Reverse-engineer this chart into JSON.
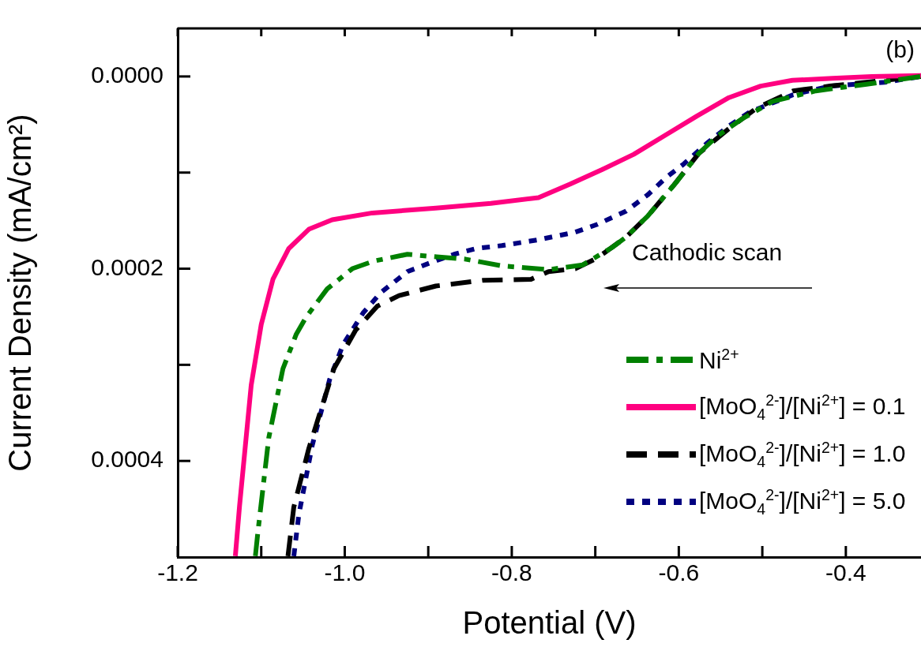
{
  "chart_data": {
    "type": "line",
    "xlabel": "Potential (V)",
    "ylabel": "Current Density (mA/cm²)",
    "xlim": [
      -1.2,
      -0.31
    ],
    "ylim": [
      0.0005,
      -5e-05
    ],
    "xticks": [
      {
        "value": -1.2,
        "label": "-1.2"
      },
      {
        "value": -1.1,
        "label": null
      },
      {
        "value": -1.0,
        "label": "-1.0"
      },
      {
        "value": -0.9,
        "label": null
      },
      {
        "value": -0.8,
        "label": "-0.8"
      },
      {
        "value": -0.7,
        "label": null
      },
      {
        "value": -0.6,
        "label": "-0.6"
      },
      {
        "value": -0.5,
        "label": null
      },
      {
        "value": -0.4,
        "label": "-0.4"
      }
    ],
    "yticks": [
      {
        "value": 0,
        "label": "0.0000"
      },
      {
        "value": 0.0001,
        "label": null
      },
      {
        "value": 0.0002,
        "label": "0.0002"
      },
      {
        "value": 0.0003,
        "label": null
      },
      {
        "value": 0.0004,
        "label": "0.0004"
      }
    ],
    "grid": false,
    "legend": "bottom right",
    "marker": "none",
    "annotations": [
      "(b)",
      "Cathodic scan"
    ],
    "series": [
      {
        "name": "Ni$^{2+}$",
        "color": "#008000",
        "line_style": "dashdot",
        "x": [
          -1.107,
          -1.104,
          -1.091,
          -1.074,
          -1.058,
          -1.046,
          -1.021,
          -0.991,
          -0.965,
          -0.925,
          -0.9,
          -0.856,
          -0.812,
          -0.756,
          -0.715,
          -0.68,
          -0.663,
          -0.637,
          -0.602,
          -0.576,
          -0.554,
          -0.524,
          -0.488,
          -0.436,
          -0.375,
          -0.31
        ],
        "values": [
          0.000499,
          0.000474,
          0.000376,
          0.000304,
          0.000268,
          0.00025,
          0.000221,
          0.0002,
          0.000192,
          0.000185,
          0.000187,
          0.00019,
          0.000197,
          0.000201,
          0.000196,
          0.000178,
          0.000167,
          0.000145,
          0.000109,
          8e-05,
          6.2e-05,
          4.4e-05,
          2.6e-05,
          1.5e-05,
          8e-06,
          0
        ]
      },
      {
        "name": "[MoO$_{4}$$^{2-}$]/[Ni$^{2+}$] = 0.1",
        "color": "#ff0080",
        "line_style": "solid",
        "x": [
          -1.131,
          -1.126,
          -1.119,
          -1.112,
          -1.1,
          -1.086,
          -1.067,
          -1.043,
          -1.015,
          -0.967,
          -0.891,
          -0.825,
          -0.768,
          -0.73,
          -0.692,
          -0.654,
          -0.616,
          -0.578,
          -0.54,
          -0.502,
          -0.464,
          -0.416,
          -0.369,
          -0.31
        ],
        "values": [
          0.000499,
          0.000447,
          0.000384,
          0.000321,
          0.000258,
          0.000211,
          0.000179,
          0.000159,
          0.000149,
          0.000142,
          0.000137,
          0.000132,
          0.000126,
          0.000112,
          9.7e-05,
          8.1e-05,
          6.1e-05,
          4.1e-05,
          2.2e-05,
          1e-05,
          4e-06,
          2e-06,
          0,
          -1e-06
        ]
      },
      {
        "name": "[MoO$_{4}$$^{2-}$]/[Ni$^{2+}$] = 1.0",
        "color": "#000000",
        "line_style": "dashed",
        "x": [
          -1.068,
          -1.061,
          -1.043,
          -1.021,
          -1.013,
          -0.987,
          -0.961,
          -0.935,
          -0.891,
          -0.834,
          -0.777,
          -0.756,
          -0.724,
          -0.698,
          -0.663,
          -0.637,
          -0.606,
          -0.576,
          -0.541,
          -0.507,
          -0.463,
          -0.419,
          -0.353,
          -0.31
        ],
        "values": [
          0.000499,
          0.000448,
          0.000387,
          0.000326,
          0.000304,
          0.000264,
          0.000239,
          0.000228,
          0.000218,
          0.000212,
          0.000211,
          0.000203,
          0.0002,
          0.000189,
          0.000167,
          0.000145,
          0.000113,
          8e-05,
          5.5e-05,
          3.3e-05,
          1.5e-05,
          1e-05,
          4e-06,
          0
        ]
      },
      {
        "name": "[MoO$_{4}$$^{2-}$]/[Ni$^{2+}$] = 5.0",
        "color": "#000080",
        "line_style": "dotted",
        "x": [
          -1.061,
          -1.055,
          -1.039,
          -1.018,
          -1.002,
          -0.978,
          -0.957,
          -0.925,
          -0.895,
          -0.869,
          -0.843,
          -0.812,
          -0.769,
          -0.724,
          -0.698,
          -0.663,
          -0.637,
          -0.615,
          -0.594,
          -0.567,
          -0.541,
          -0.515,
          -0.463,
          -0.419,
          -0.353,
          -0.31
        ],
        "values": [
          0.000499,
          0.000456,
          0.000384,
          0.000315,
          0.000279,
          0.000246,
          0.000225,
          0.000203,
          0.000193,
          0.000185,
          0.000179,
          0.000176,
          0.00017,
          0.000162,
          0.000154,
          0.00014,
          0.000123,
          0.000105,
          9.1e-05,
          7e-05,
          5.2e-05,
          3.7e-05,
          1.9e-05,
          1e-05,
          6e-06,
          0
        ]
      }
    ]
  }
}
